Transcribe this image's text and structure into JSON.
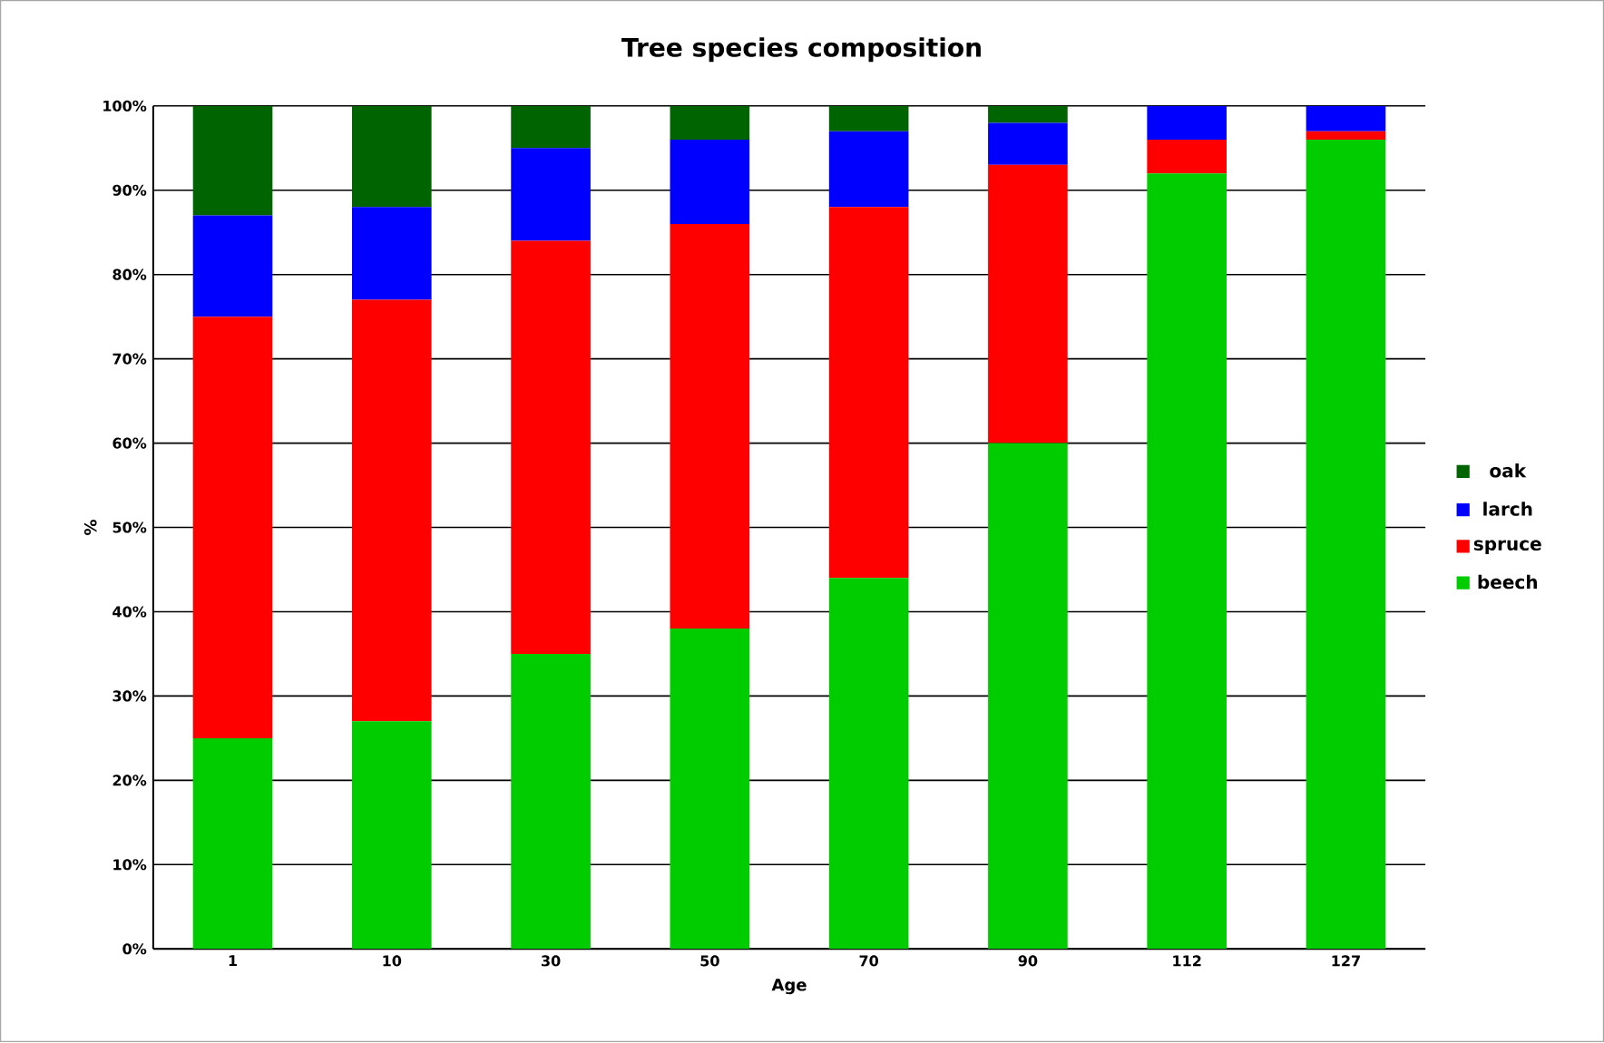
{
  "chart_data": {
    "type": "bar",
    "stacked": true,
    "title": "Tree species composition",
    "xlabel": "Age",
    "ylabel": "%",
    "categories": [
      "1",
      "10",
      "30",
      "50",
      "70",
      "90",
      "112",
      "127"
    ],
    "series": [
      {
        "name": "beech",
        "color": "#00cc00",
        "values": [
          25,
          27,
          35,
          38,
          44,
          60,
          92,
          96
        ]
      },
      {
        "name": "spruce",
        "color": "#ff0000",
        "values": [
          50,
          50,
          49,
          48,
          44,
          33,
          4,
          1
        ]
      },
      {
        "name": "larch",
        "color": "#0000ff",
        "values": [
          12,
          11,
          11,
          10,
          9,
          5,
          4,
          3
        ]
      },
      {
        "name": "oak",
        "color": "#006400",
        "values": [
          13,
          12,
          5,
          4,
          3,
          2,
          0,
          0
        ]
      }
    ],
    "ylim": [
      0,
      100
    ],
    "yticks": [
      {
        "value": 0,
        "label": "0%"
      },
      {
        "value": 10,
        "label": "10%"
      },
      {
        "value": 20,
        "label": "20%"
      },
      {
        "value": 30,
        "label": "30%"
      },
      {
        "value": 40,
        "label": "40%"
      },
      {
        "value": 50,
        "label": "50%"
      },
      {
        "value": 60,
        "label": "60%"
      },
      {
        "value": 70,
        "label": "70%"
      },
      {
        "value": 80,
        "label": "80%"
      },
      {
        "value": 90,
        "label": "90%"
      },
      {
        "value": 100,
        "label": "100%"
      }
    ],
    "grid": "y",
    "legend": "right"
  }
}
